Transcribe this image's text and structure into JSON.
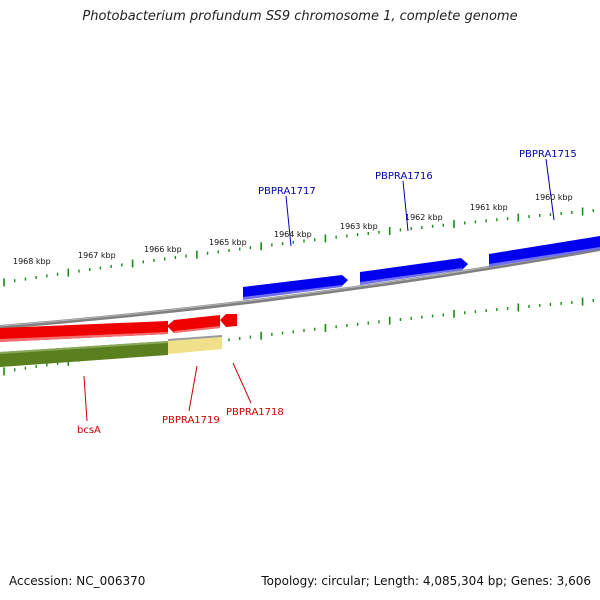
{
  "title": "Photobacterium profundum SS9 chromosome 1, complete genome",
  "footer": {
    "accession": "Accession: NC_006370",
    "summary": "Topology: circular; Length: 4,085,304 bp; Genes: 3,606"
  },
  "colors": {
    "forward_gene": "#0000ee",
    "reverse_gene": "#ee0000",
    "operon_band": "#5a7f1e",
    "highlight_band": "#f0e08a",
    "backbone": "#808080",
    "ticks": "#1a8a1a",
    "forward_label": "#0000aa",
    "reverse_label": "#cc0000"
  },
  "ruler_labels": [
    "1968 kbp",
    "1967 kbp",
    "1966 kbp",
    "1965 kbp",
    "1964 kbp",
    "1963 kbp",
    "1962 kbp",
    "1961 kbp",
    "1960 kbp"
  ],
  "genes_forward": [
    "PBPRA1717",
    "PBPRA1716",
    "PBPRA1715"
  ],
  "genes_reverse": [
    "bcsA",
    "PBPRA1719",
    "PBPRA1718"
  ]
}
